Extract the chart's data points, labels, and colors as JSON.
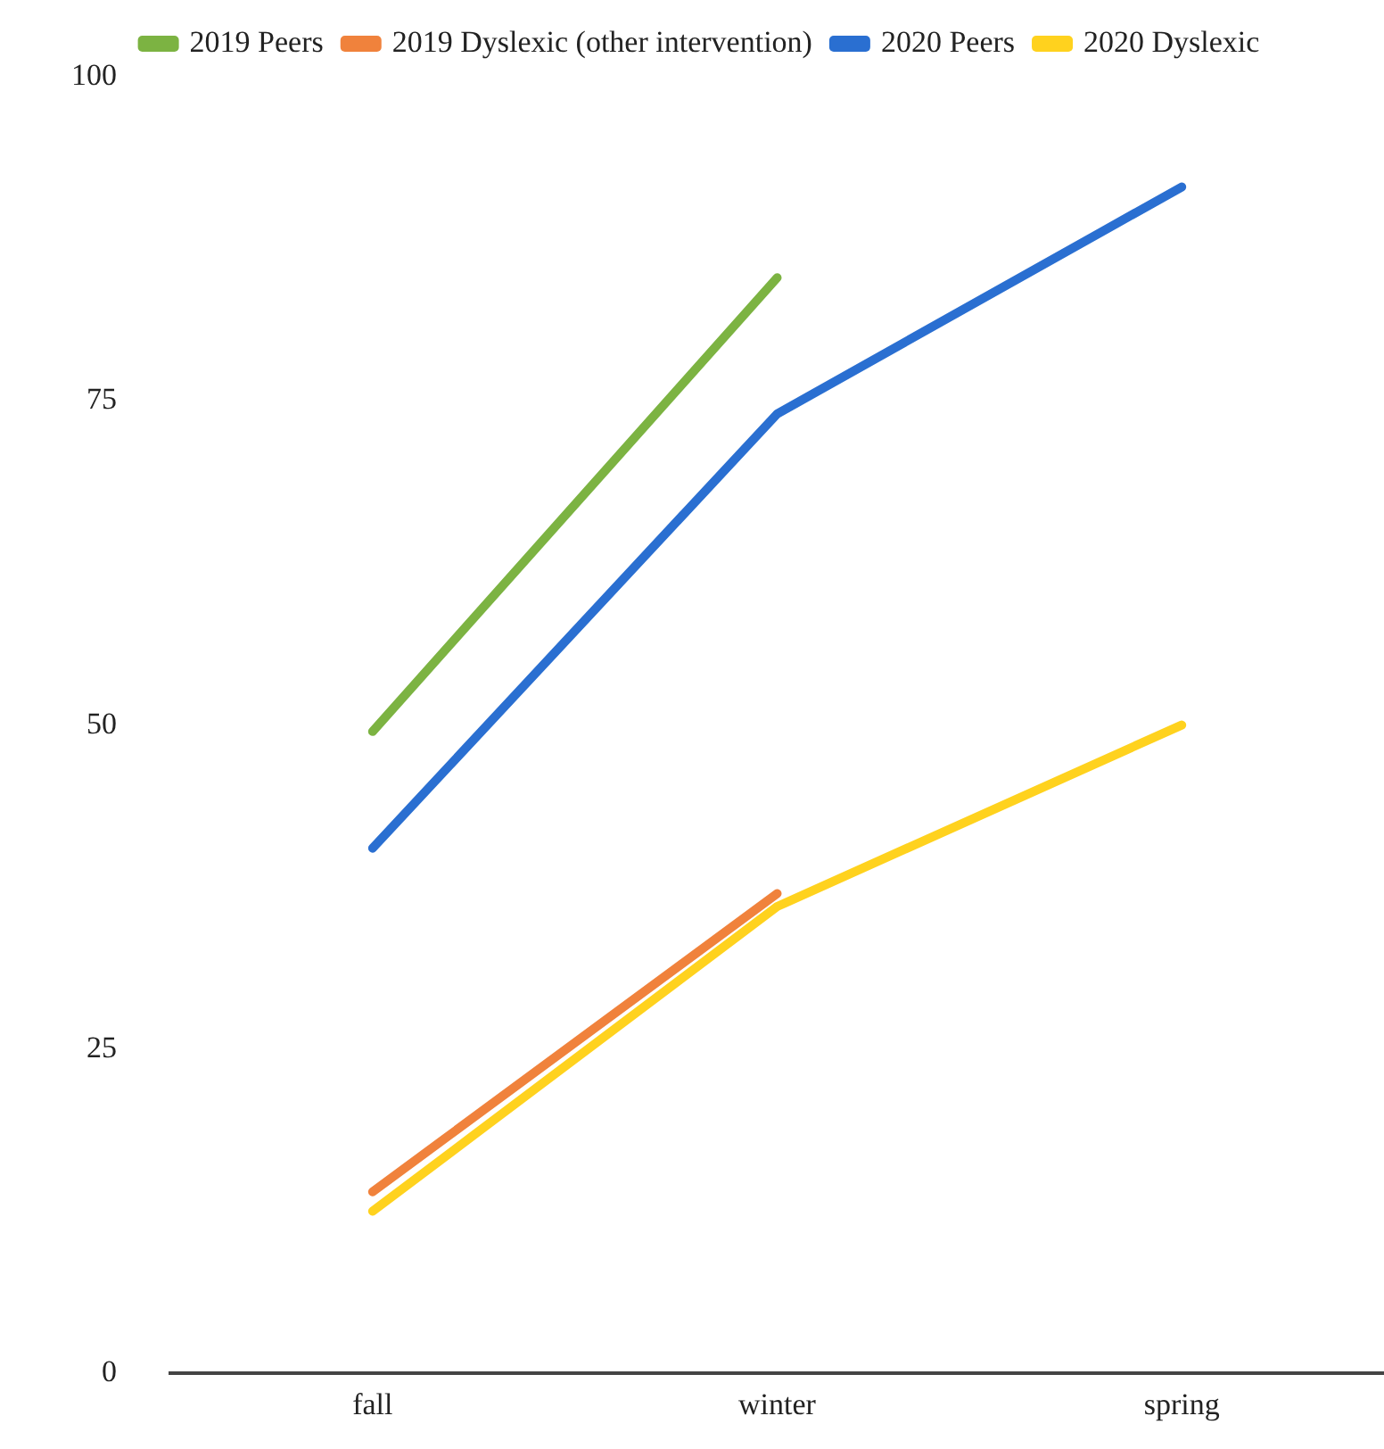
{
  "chart_data": {
    "type": "line",
    "categories": [
      "fall",
      "winter",
      "spring"
    ],
    "series": [
      {
        "name": "2019 Peers",
        "color": "#7cb342",
        "values": [
          49.5,
          84.5,
          null
        ]
      },
      {
        "name": "2019 Dyslexic (other intervention)",
        "color": "#f0823c",
        "values": [
          14,
          37,
          null
        ]
      },
      {
        "name": "2020 Peers",
        "color": "#2a6fd1",
        "values": [
          40.5,
          74,
          91.5
        ]
      },
      {
        "name": "2020 Dyslexic",
        "color": "#ffd21e",
        "values": [
          12.5,
          36,
          50
        ]
      }
    ],
    "ylim": [
      0,
      100
    ],
    "yticks": [
      0,
      25,
      50,
      75,
      100
    ],
    "grid": false,
    "legend": "top",
    "marker": "none",
    "line_style": "solid"
  }
}
